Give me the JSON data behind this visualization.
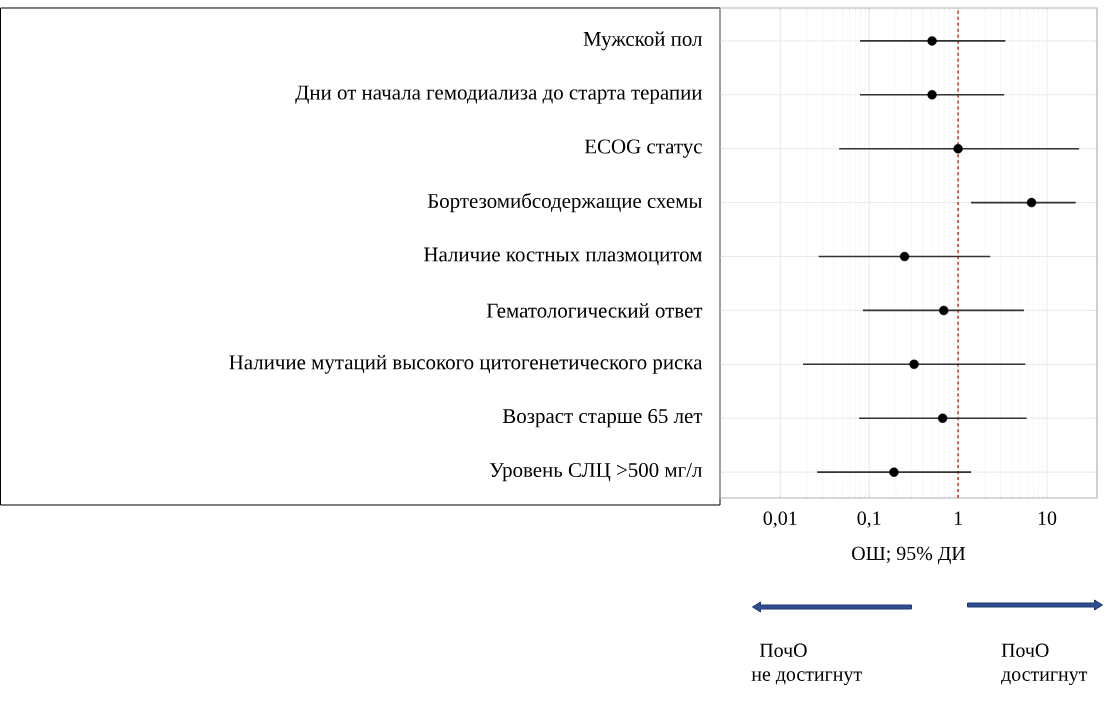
{
  "chart_data": {
    "type": "scatter",
    "orientation": "horizontal",
    "log": "x",
    "grid": true,
    "marker": "circle",
    "categories": [
      "Мужской пол",
      "Дни от начала гемодиализа до старта терапии",
      "ECOG статус",
      "Бортезомибсодержащие схемы",
      "Наличие костных плазмоцитом",
      "Гематологический ответ",
      "Наличие мутаций высокого цитогенетического риска",
      "Возраст старше 65 лет",
      "Уровень СЛЦ >500 мг/л"
    ],
    "series": [
      {
        "color": "#000000",
        "values": [
          0.51,
          0.51,
          1.0,
          6.7,
          0.25,
          0.69,
          0.32,
          0.67,
          0.19
        ],
        "errors": [
          [
            0.079,
            3.4
          ],
          [
            0.079,
            3.3
          ],
          [
            0.046,
            23
          ],
          [
            1.4,
            21
          ],
          [
            0.027,
            2.3
          ],
          [
            0.085,
            5.5
          ],
          [
            0.018,
            5.7
          ],
          [
            0.077,
            5.9
          ],
          [
            0.026,
            1.4
          ]
        ]
      }
    ],
    "xlim": [
      0.0021,
      36.5
    ],
    "xticks": [
      {
        "value": 0.01,
        "label": "0,01"
      },
      {
        "value": 0.1,
        "label": "0,1"
      },
      1,
      10
    ],
    "xlabel": "ОШ; 95% ДИ",
    "ref_lines": [
      {
        "axis": "x",
        "value": 1,
        "color": "#c0392b",
        "line_style": "dashed"
      }
    ],
    "annotations": [
      "ПочО",
      "не достигнут",
      "ПочО",
      "достигнут"
    ]
  }
}
